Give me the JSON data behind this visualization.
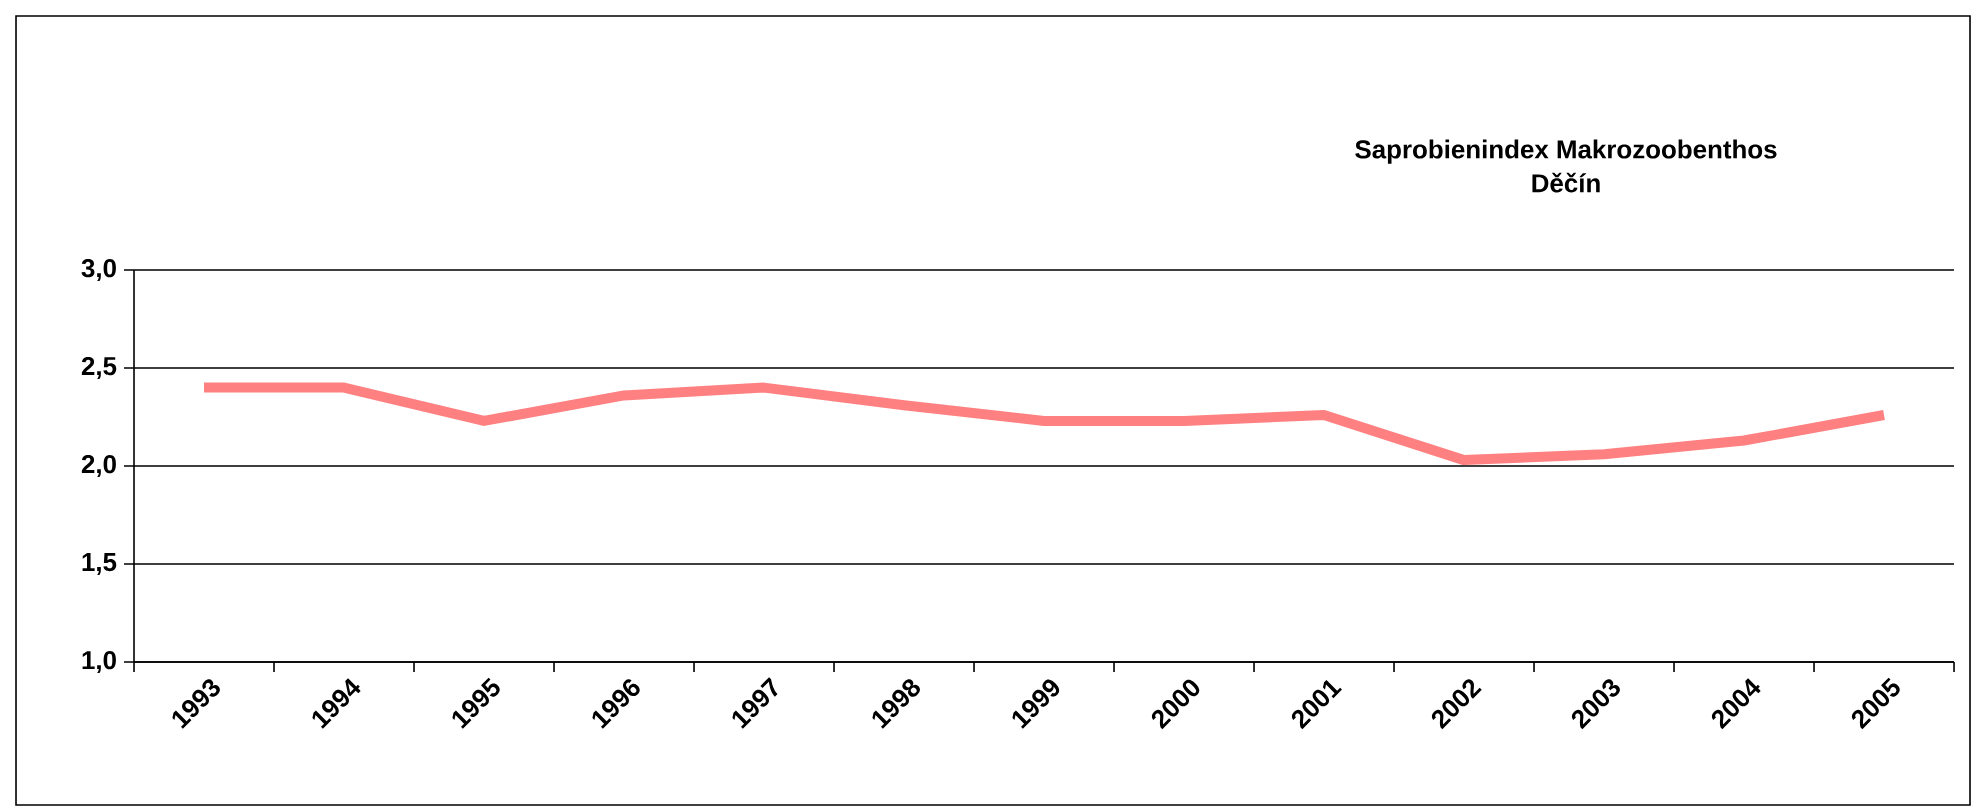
{
  "chart_data": {
    "type": "line",
    "title": "Saprobienindex Makrozoobenthos\nDěčín",
    "categories": [
      "1993",
      "1994",
      "1995",
      "1996",
      "1997",
      "1998",
      "1999",
      "2000",
      "2001",
      "2002",
      "2003",
      "2004",
      "2005"
    ],
    "series": [
      {
        "color": "#ff8080",
        "values": [
          2.4,
          2.4,
          2.23,
          2.36,
          2.4,
          2.31,
          2.23,
          2.23,
          2.26,
          2.03,
          2.06,
          2.13,
          2.26
        ]
      }
    ],
    "ylim": [
      1.0,
      3.0
    ],
    "yticks": [
      {
        "value": 1.0,
        "label": "1,0"
      },
      {
        "value": 1.5,
        "label": "1,5"
      },
      {
        "value": 2.0,
        "label": "2,0"
      },
      {
        "value": 2.5,
        "label": "2,5"
      },
      {
        "value": 3.0,
        "label": "3,0"
      }
    ],
    "grid": "y",
    "marker": "none",
    "line_style": "solid"
  }
}
